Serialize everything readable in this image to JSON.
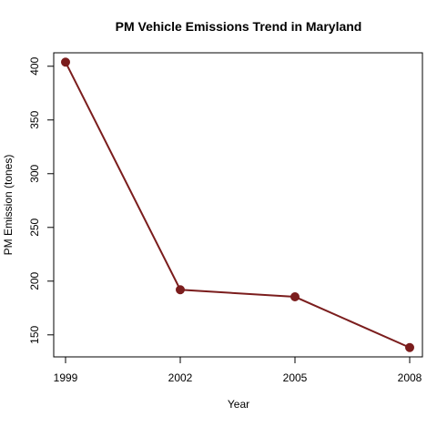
{
  "chart_data": {
    "type": "line",
    "title": "PM Vehicle Emissions Trend in Maryland",
    "xlabel": "Year",
    "ylabel": "PM Emission (tones)",
    "x": [
      1999,
      2002,
      2005,
      2008
    ],
    "series": [
      {
        "values": [
          403.8,
          192.0,
          185.4,
          138.2
        ]
      }
    ],
    "xlim": [
      1999,
      2008
    ],
    "ylim": [
      129.5,
      412.5
    ],
    "x_ticks": [
      "1999",
      "2002",
      "2005",
      "2008"
    ],
    "y_ticks": [
      "150",
      "200",
      "250",
      "300",
      "350",
      "400"
    ],
    "grid": false,
    "legend": "none",
    "colors": {
      "series": "#7b1d1d",
      "frame": "#000000",
      "background": "#ffffff"
    }
  }
}
